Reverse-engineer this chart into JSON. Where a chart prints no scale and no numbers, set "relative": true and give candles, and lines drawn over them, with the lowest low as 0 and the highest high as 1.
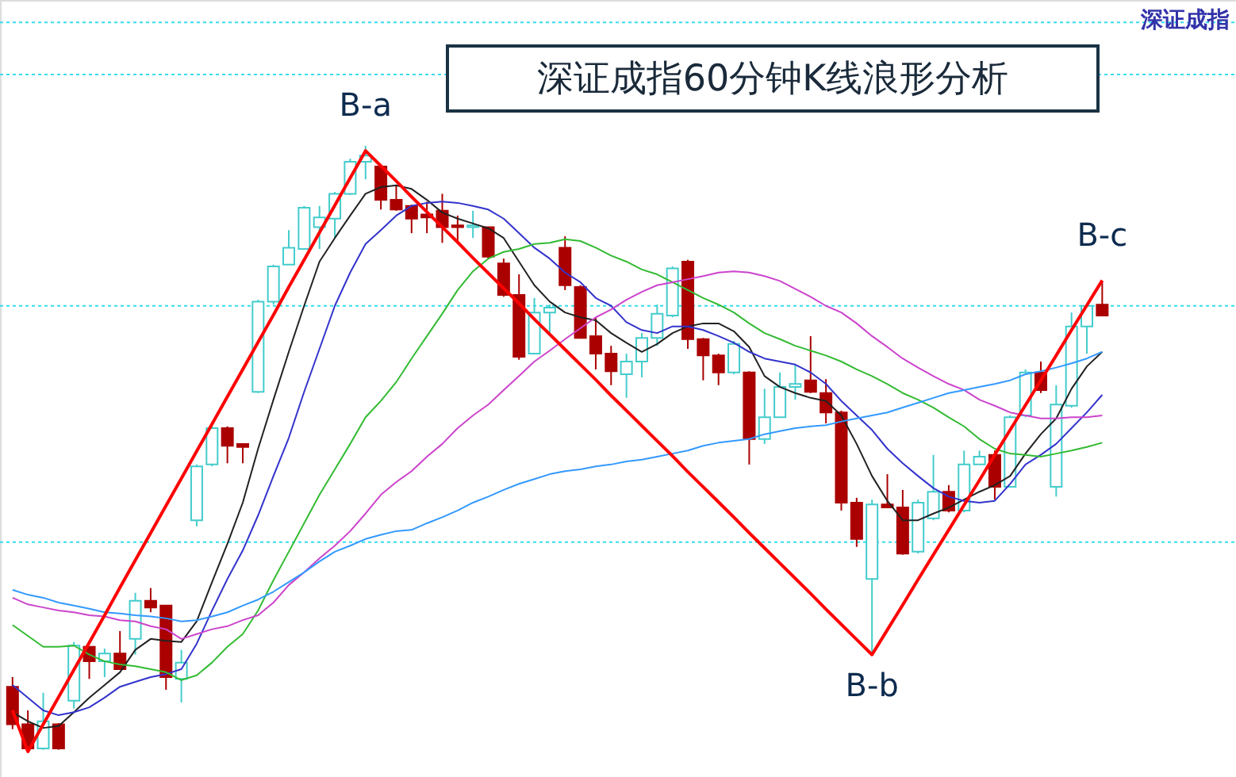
{
  "chart_data": {
    "type": "candlestick",
    "relative": true,
    "title": "深证成指60分钟K线浪形分析",
    "categories": [
      null,
      null,
      null,
      null,
      null,
      null,
      null,
      null,
      null,
      null,
      null,
      null,
      null,
      null,
      null,
      null,
      null,
      null,
      null,
      null,
      null,
      null,
      null,
      null,
      null,
      null,
      null,
      null,
      null,
      null,
      null,
      null,
      null,
      null,
      null,
      null,
      null,
      null,
      null,
      null,
      null,
      null,
      null,
      null,
      null,
      null,
      null,
      null,
      null,
      null,
      null,
      null,
      null,
      null,
      null,
      null,
      null,
      null,
      null,
      null,
      null,
      null,
      null,
      null,
      null,
      null,
      null,
      null,
      null,
      null,
      null,
      null
    ],
    "ohlc": [
      [
        0.107,
        0.123,
        0.037,
        0.045
      ],
      [
        0.045,
        0.068,
        0,
        0.005
      ],
      [
        0.005,
        0.097,
        0.003,
        0.05
      ],
      [
        0.045,
        0.047,
        0.003,
        0.005
      ],
      [
        0.084,
        0.181,
        0.071,
        0.175
      ],
      [
        0.173,
        0.173,
        0.12,
        0.149
      ],
      [
        0.149,
        0.17,
        0.123,
        0.162
      ],
      [
        0.162,
        0.199,
        0.136,
        0.136
      ],
      [
        0.186,
        0.262,
        0.16,
        0.249
      ],
      [
        0.249,
        0.27,
        0.23,
        0.238
      ],
      [
        0.241,
        0.241,
        0.102,
        0.123
      ],
      [
        0.12,
        0.168,
        0.081,
        0.147
      ],
      [
        0.382,
        0.474,
        0.372,
        0.471
      ],
      [
        0.474,
        0.537,
        0.471,
        0.534
      ],
      [
        0.534,
        0.537,
        0.476,
        0.505
      ],
      [
        0.508,
        0.508,
        0.476,
        0.503
      ],
      [
        0.594,
        0.746,
        0.592,
        0.743
      ],
      [
        0.743,
        0.804,
        0.738,
        0.801
      ],
      [
        0.804,
        0.861,
        0.804,
        0.832
      ],
      [
        0.83,
        0.901,
        0.83,
        0.898
      ],
      [
        0.866,
        0.901,
        0.83,
        0.882
      ],
      [
        0.88,
        0.924,
        0.848,
        0.921
      ],
      [
        0.921,
        0.979,
        0.919,
        0.974
      ],
      [
        0.974,
        1,
        0.945,
        0.984
      ],
      [
        0.966,
        0.969,
        0.895,
        0.911
      ],
      [
        0.911,
        0.935,
        0.893,
        0.895
      ],
      [
        0.901,
        0.903,
        0.856,
        0.88
      ],
      [
        0.887,
        0.908,
        0.856,
        0.882
      ],
      [
        0.893,
        0.921,
        0.84,
        0.866
      ],
      [
        0.869,
        0.885,
        0.84,
        0.866
      ],
      [
        0.866,
        0.893,
        0.848,
        0.869
      ],
      [
        0.866,
        0.866,
        0.814,
        0.817
      ],
      [
        0.806,
        0.814,
        0.751,
        0.754
      ],
      [
        0.754,
        0.788,
        0.647,
        0.652
      ],
      [
        0.657,
        0.749,
        0.657,
        0.725
      ],
      [
        0.725,
        0.738,
        0.686,
        0.733
      ],
      [
        0.832,
        0.851,
        0.762,
        0.77
      ],
      [
        0.767,
        0.77,
        0.683,
        0.683
      ],
      [
        0.686,
        0.717,
        0.631,
        0.657
      ],
      [
        0.657,
        0.67,
        0.605,
        0.628
      ],
      [
        0.623,
        0.657,
        0.584,
        0.644
      ],
      [
        0.644,
        0.691,
        0.618,
        0.683
      ],
      [
        0.683,
        0.738,
        0.67,
        0.723
      ],
      [
        0.72,
        0.801,
        0.717,
        0.798
      ],
      [
        0.809,
        0.812,
        0.665,
        0.681
      ],
      [
        0.681,
        0.683,
        0.613,
        0.654
      ],
      [
        0.654,
        0.657,
        0.605,
        0.626
      ],
      [
        0.626,
        0.678,
        0.623,
        0.673
      ],
      [
        0.626,
        0.628,
        0.474,
        0.516
      ],
      [
        0.516,
        0.599,
        0.508,
        0.552
      ],
      [
        0.552,
        0.626,
        0.552,
        0.602
      ],
      [
        0.602,
        0.639,
        0.581,
        0.607
      ],
      [
        0.613,
        0.686,
        0.592,
        0.594
      ],
      [
        0.592,
        0.615,
        0.542,
        0.56
      ],
      [
        0.56,
        0.563,
        0.398,
        0.411
      ],
      [
        0.411,
        0.419,
        0.338,
        0.351
      ],
      [
        0.285,
        0.416,
        0.16,
        0.408
      ],
      [
        0.408,
        0.458,
        0.403,
        0.403
      ],
      [
        0.403,
        0.432,
        0.325,
        0.327
      ],
      [
        0.33,
        0.416,
        0.327,
        0.411
      ],
      [
        0.385,
        0.49,
        0.382,
        0.429
      ],
      [
        0.429,
        0.44,
        0.395,
        0.398
      ],
      [
        0.398,
        0.497,
        0.395,
        0.474
      ],
      [
        0.474,
        0.497,
        0.474,
        0.487
      ],
      [
        0.49,
        0.497,
        0.416,
        0.437
      ],
      [
        0.437,
        0.555,
        0.437,
        0.552
      ],
      [
        0.555,
        0.631,
        0.552,
        0.626
      ],
      [
        0.626,
        0.644,
        0.592,
        0.597
      ],
      [
        0.437,
        0.605,
        0.421,
        0.573
      ],
      [
        0.571,
        0.725,
        0.568,
        0.702
      ],
      [
        0.702,
        0.736,
        0.657,
        0.736
      ],
      [
        0.738,
        0.777,
        0.72,
        0.72
      ]
    ],
    "colors": [
      "#aa0000",
      "#aa0000",
      "#44cccc",
      "#aa0000",
      "#44cccc",
      "#aa0000",
      "#44cccc",
      "#aa0000",
      "#44cccc",
      "#aa0000",
      "#aa0000",
      "#44cccc",
      "#44cccc",
      "#44cccc",
      "#aa0000",
      "#aa0000",
      "#44cccc",
      "#44cccc",
      "#44cccc",
      "#44cccc",
      "#44cccc",
      "#44cccc",
      "#44cccc",
      "#44cccc",
      "#aa0000",
      "#aa0000",
      "#aa0000",
      "#aa0000",
      "#aa0000",
      "#aa0000",
      "#44cccc",
      "#aa0000",
      "#aa0000",
      "#aa0000",
      "#44cccc",
      "#44cccc",
      "#aa0000",
      "#aa0000",
      "#aa0000",
      "#aa0000",
      "#44cccc",
      "#44cccc",
      "#44cccc",
      "#44cccc",
      "#aa0000",
      "#aa0000",
      "#aa0000",
      "#44cccc",
      "#aa0000",
      "#44cccc",
      "#44cccc",
      "#44cccc",
      "#aa0000",
      "#aa0000",
      "#aa0000",
      "#aa0000",
      "#44cccc",
      "#aa0000",
      "#aa0000",
      "#44cccc",
      "#44cccc",
      "#aa0000",
      "#44cccc",
      "#44cccc",
      "#aa0000",
      "#44cccc",
      "#44cccc",
      "#aa0000",
      "#44cccc",
      "#44cccc",
      "#44cccc",
      "#aa0000"
    ],
    "series": [
      {
        "type": "line",
        "color": "#ff0000",
        "values": [
          0.068,
          0,
          0.045,
          0.09,
          0.135,
          0.18,
          0.225,
          0.271,
          0.316,
          0.361,
          0.406,
          0.451,
          0.496,
          0.541,
          0.586,
          0.631,
          0.676,
          0.721,
          0.767,
          0.812,
          0.857,
          0.902,
          0.947,
          0.992,
          0.967,
          0.942,
          0.916,
          0.891,
          0.866,
          0.841,
          0.815,
          0.79,
          0.765,
          0.74,
          0.714,
          0.689,
          0.664,
          0.639,
          0.614,
          0.588,
          0.563,
          0.538,
          0.513,
          0.488,
          0.462,
          0.437,
          0.412,
          0.387,
          0.361,
          0.336,
          0.311,
          0.286,
          0.261,
          0.235,
          0.21,
          0.185,
          0.16,
          0.201,
          0.242,
          0.284,
          0.325,
          0.366,
          0.407,
          0.448,
          0.49,
          0.531,
          0.572,
          0.613,
          0.654,
          0.696,
          0.737,
          0.778
        ]
      },
      {
        "type": "line",
        "color": "#222222",
        "values": [
          0.065,
          0.05,
          0.039,
          0.042,
          0.065,
          0.089,
          0.11,
          0.131,
          0.168,
          0.186,
          0.183,
          0.181,
          0.215,
          0.28,
          0.343,
          0.411,
          0.5,
          0.581,
          0.66,
          0.736,
          0.809,
          0.848,
          0.885,
          0.921,
          0.932,
          0.935,
          0.929,
          0.911,
          0.89,
          0.88,
          0.872,
          0.864,
          0.848,
          0.809,
          0.77,
          0.743,
          0.725,
          0.717,
          0.712,
          0.691,
          0.675,
          0.66,
          0.673,
          0.691,
          0.702,
          0.707,
          0.707,
          0.694,
          0.668,
          0.62,
          0.602,
          0.592,
          0.584,
          0.579,
          0.555,
          0.508,
          0.455,
          0.414,
          0.382,
          0.382,
          0.393,
          0.403,
          0.416,
          0.429,
          0.44,
          0.455,
          0.492,
          0.524,
          0.55,
          0.599,
          0.636,
          0.66
        ]
      },
      {
        "type": "line",
        "color": "#3333cc",
        "values": [
          0.11,
          0.089,
          0.068,
          0.06,
          0.065,
          0.073,
          0.089,
          0.107,
          0.115,
          0.123,
          0.128,
          0.136,
          0.178,
          0.233,
          0.285,
          0.332,
          0.39,
          0.455,
          0.518,
          0.594,
          0.665,
          0.736,
          0.791,
          0.838,
          0.861,
          0.885,
          0.901,
          0.906,
          0.908,
          0.906,
          0.901,
          0.895,
          0.88,
          0.856,
          0.832,
          0.814,
          0.791,
          0.775,
          0.749,
          0.736,
          0.709,
          0.696,
          0.691,
          0.702,
          0.702,
          0.696,
          0.686,
          0.675,
          0.66,
          0.649,
          0.644,
          0.639,
          0.626,
          0.607,
          0.579,
          0.555,
          0.531,
          0.5,
          0.476,
          0.455,
          0.435,
          0.421,
          0.414,
          0.411,
          0.414,
          0.442,
          0.474,
          0.49,
          0.508,
          0.534,
          0.56,
          0.589
        ]
      },
      {
        "type": "line",
        "color": "#33bb33",
        "values": [
          0.209,
          0.191,
          0.173,
          0.173,
          0.175,
          0.16,
          0.149,
          0.144,
          0.141,
          0.136,
          0.131,
          0.118,
          0.126,
          0.147,
          0.173,
          0.194,
          0.233,
          0.283,
          0.33,
          0.377,
          0.424,
          0.466,
          0.508,
          0.552,
          0.579,
          0.61,
          0.649,
          0.686,
          0.723,
          0.762,
          0.793,
          0.814,
          0.825,
          0.83,
          0.838,
          0.84,
          0.846,
          0.843,
          0.832,
          0.819,
          0.809,
          0.796,
          0.788,
          0.775,
          0.762,
          0.749,
          0.738,
          0.725,
          0.707,
          0.691,
          0.681,
          0.67,
          0.662,
          0.654,
          0.644,
          0.631,
          0.62,
          0.607,
          0.592,
          0.581,
          0.568,
          0.552,
          0.537,
          0.516,
          0.5,
          0.492,
          0.49,
          0.487,
          0.492,
          0.497,
          0.503,
          0.51
        ]
      },
      {
        "type": "line",
        "color": "#cc44cc",
        "values": [
          0.254,
          0.243,
          0.238,
          0.233,
          0.23,
          0.225,
          0.223,
          0.217,
          0.215,
          0.207,
          0.202,
          0.186,
          0.194,
          0.202,
          0.207,
          0.217,
          0.225,
          0.246,
          0.275,
          0.296,
          0.319,
          0.34,
          0.364,
          0.393,
          0.424,
          0.445,
          0.463,
          0.487,
          0.508,
          0.534,
          0.555,
          0.573,
          0.597,
          0.62,
          0.644,
          0.662,
          0.681,
          0.699,
          0.717,
          0.73,
          0.746,
          0.759,
          0.77,
          0.775,
          0.78,
          0.785,
          0.791,
          0.793,
          0.791,
          0.785,
          0.777,
          0.764,
          0.751,
          0.736,
          0.725,
          0.707,
          0.686,
          0.668,
          0.649,
          0.634,
          0.62,
          0.607,
          0.597,
          0.581,
          0.571,
          0.56,
          0.555,
          0.55,
          0.55,
          0.552,
          0.552,
          0.555
        ]
      },
      {
        "type": "line",
        "color": "#3399ff",
        "values": [
          0.267,
          0.259,
          0.254,
          0.246,
          0.241,
          0.236,
          0.23,
          0.228,
          0.225,
          0.223,
          0.22,
          0.215,
          0.217,
          0.223,
          0.23,
          0.241,
          0.251,
          0.264,
          0.28,
          0.296,
          0.314,
          0.33,
          0.34,
          0.351,
          0.358,
          0.364,
          0.366,
          0.377,
          0.387,
          0.398,
          0.411,
          0.421,
          0.432,
          0.442,
          0.45,
          0.458,
          0.463,
          0.466,
          0.471,
          0.474,
          0.479,
          0.482,
          0.487,
          0.492,
          0.497,
          0.505,
          0.51,
          0.513,
          0.516,
          0.524,
          0.529,
          0.534,
          0.537,
          0.539,
          0.545,
          0.55,
          0.555,
          0.56,
          0.568,
          0.576,
          0.584,
          0.592,
          0.597,
          0.602,
          0.607,
          0.613,
          0.623,
          0.628,
          0.634,
          0.641,
          0.649,
          0.66
        ]
      }
    ],
    "ref_lines": [
      {
        "axis": "y",
        "value": 1.204,
        "color": "#33ddee",
        "line_style": "dotted"
      },
      {
        "axis": "y",
        "value": 1.118,
        "color": "#33ddee",
        "line_style": "dotted"
      },
      {
        "axis": "y",
        "value": 0.736,
        "color": "#33ddee",
        "line_style": "dotted"
      },
      {
        "axis": "y",
        "value": 0.346,
        "color": "#33ddee",
        "line_style": "dotted"
      }
    ],
    "annotations": [
      {
        "text": "B-a",
        "y": 0.992
      },
      {
        "text": "B-b",
        "y": 0.16
      },
      {
        "text": "B-c",
        "y": 0.778
      },
      "深证成指"
    ]
  }
}
